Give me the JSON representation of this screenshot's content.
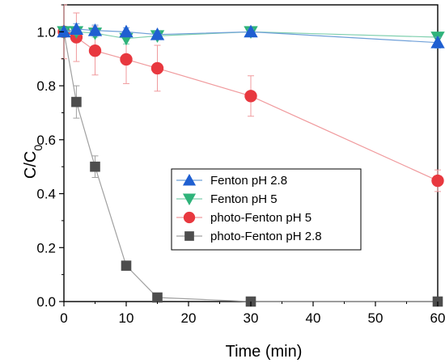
{
  "chart_data": {
    "type": "line",
    "xlabel": "Time (min)",
    "ylabel_main": "C/C",
    "ylabel_sub": "0",
    "xlim": [
      0,
      60
    ],
    "ylim": [
      0,
      1.1
    ],
    "x_ticks": [
      0,
      10,
      20,
      30,
      40,
      50,
      60
    ],
    "y_ticks": [
      0.0,
      0.2,
      0.4,
      0.6,
      0.8,
      1.0
    ],
    "x_tick_labels": [
      "0",
      "10",
      "20",
      "30",
      "40",
      "50",
      "60"
    ],
    "y_tick_labels": [
      "0.0",
      "0.2",
      "0.4",
      "0.6",
      "0.8",
      "1.0"
    ],
    "legend_position": "center",
    "series": [
      {
        "name": "Fenton pH 2.8",
        "marker": "triangle-up",
        "color": "#1f5fd1",
        "line_color": "#6fa0d8",
        "x": [
          0,
          2,
          5,
          10,
          15,
          30,
          60
        ],
        "y": [
          1.0,
          1.01,
          1.005,
          1.0,
          0.99,
          1.0,
          0.96
        ],
        "err": [
          0.01,
          0.02,
          0.02,
          0.015,
          0.01,
          0.01,
          0.02
        ]
      },
      {
        "name": "Fenton pH 5",
        "marker": "triangle-down",
        "color": "#2fb37a",
        "line_color": "#7fcfae",
        "x": [
          0,
          2,
          5,
          10,
          15,
          30,
          60
        ],
        "y": [
          1.0,
          1.0,
          0.995,
          0.975,
          0.985,
          1.0,
          0.98
        ],
        "err": [
          0.01,
          0.01,
          0.015,
          0.02,
          0.01,
          0.01,
          0.015
        ]
      },
      {
        "name": "photo-Fenton pH 5",
        "marker": "circle",
        "color": "#e8383f",
        "line_color": "#f09a9d",
        "x": [
          0,
          2,
          5,
          10,
          15,
          30,
          60
        ],
        "y": [
          1.0,
          0.98,
          0.93,
          0.898,
          0.865,
          0.762,
          0.448
        ],
        "err": [
          0.1,
          0.09,
          0.09,
          0.09,
          0.085,
          0.075,
          0.04
        ]
      },
      {
        "name": "photo-Fenton pH 2.8",
        "marker": "square",
        "color": "#4d4d4d",
        "line_color": "#a0a0a0",
        "x": [
          0,
          2,
          5,
          10,
          15,
          30,
          60
        ],
        "y": [
          1.0,
          0.74,
          0.5,
          0.133,
          0.015,
          0.0,
          0.0
        ],
        "err": [
          0.02,
          0.06,
          0.04,
          0.01,
          0.005,
          0.003,
          0.003
        ]
      }
    ]
  }
}
